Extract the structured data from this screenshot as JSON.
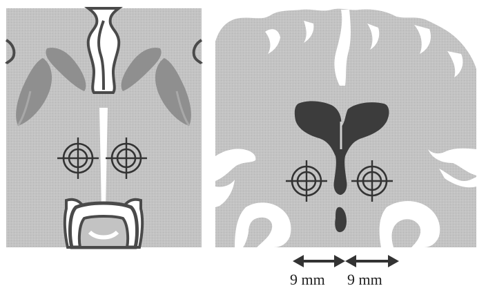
{
  "figure": {
    "panels": [
      {
        "name": "axial-section",
        "targets": 2
      },
      {
        "name": "coronal-section",
        "targets": 2
      }
    ],
    "measurements": {
      "left": "9 mm",
      "right": "9 mm"
    },
    "colors": {
      "tissue": "#c2c2c2",
      "tissue_dark": "#8f8f8f",
      "csf": "#ffffff",
      "ventricle": "#3c3c3c",
      "outline": "#5a5a5a",
      "target": "#333333"
    }
  }
}
